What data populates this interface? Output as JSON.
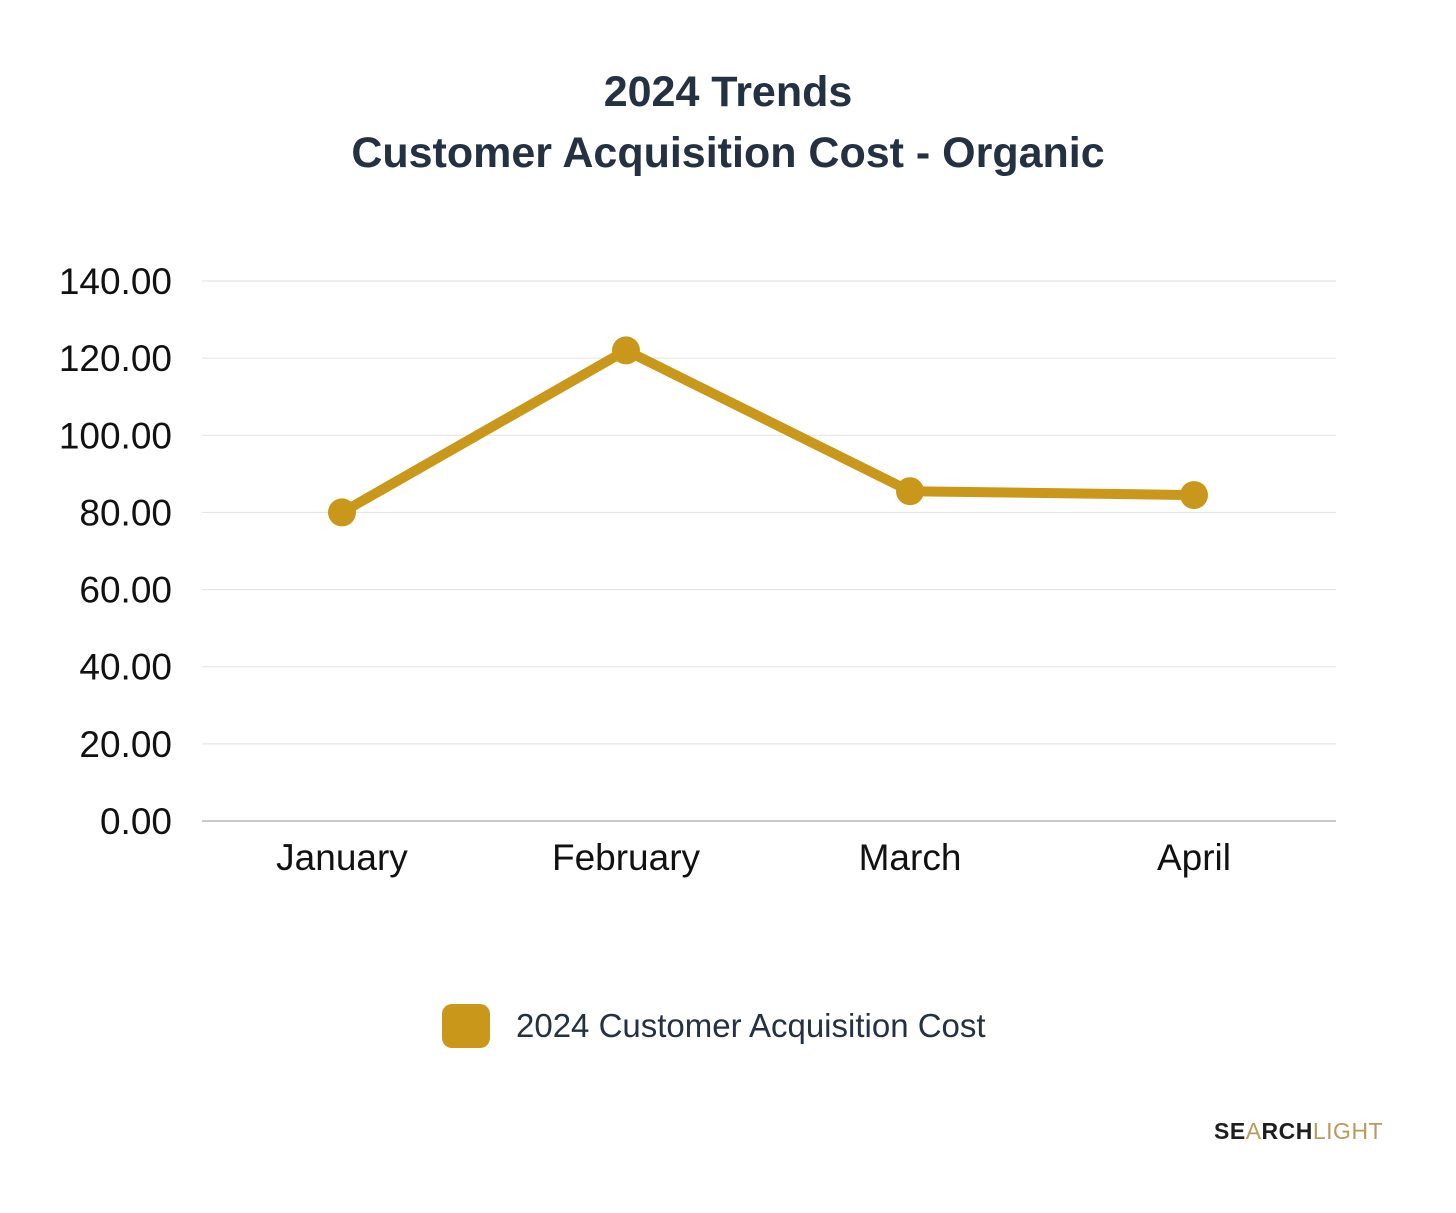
{
  "chart_data": {
    "type": "line",
    "title_lines": [
      "2024 Trends",
      "Customer Acquisition Cost - Organic"
    ],
    "categories": [
      "January",
      "February",
      "March",
      "April"
    ],
    "series": [
      {
        "name": "2024 Customer Acquisition Cost",
        "values": [
          80,
          122,
          85.5,
          84.5
        ],
        "color": "#C9981A"
      }
    ],
    "ylim": [
      0,
      140
    ],
    "yticks": [
      "0.00",
      "20.00",
      "40.00",
      "60.00",
      "80.00",
      "100.00",
      "120.00",
      "140.00"
    ],
    "grid": true,
    "legend_position": "bottom"
  },
  "brand": {
    "part1": "SE",
    "part2": "A",
    "part3": "RCH",
    "part4": "LIGHT"
  },
  "colors": {
    "title": "#243142",
    "series": "#C9981A",
    "grid": "#e2e2e2",
    "axis": "#b8b8b8"
  }
}
